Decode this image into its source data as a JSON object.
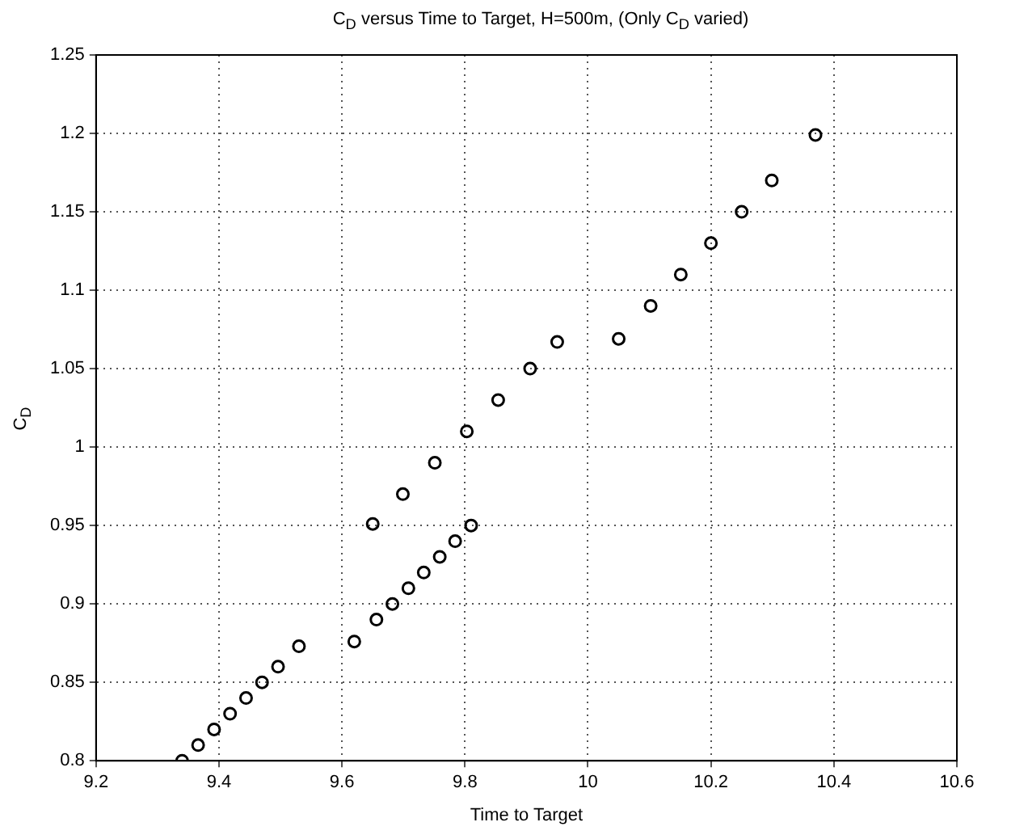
{
  "chart_data": {
    "type": "scatter",
    "title": "C$_{D}$ versus Time to Target, H=500m, (Only C$_{D}$ varied)",
    "xlabel": "Time to Target",
    "ylabel": "C$_{D}$",
    "series": [
      {
        "color": "#000000",
        "x": [
          9.34,
          9.366,
          9.392,
          9.418,
          9.444,
          9.47,
          9.496,
          9.53,
          9.62,
          9.656,
          9.682,
          9.708,
          9.733,
          9.759,
          9.784,
          9.81,
          9.65,
          9.699,
          9.751,
          9.803,
          9.854,
          9.906,
          9.95,
          10.05,
          10.102,
          10.151,
          10.2,
          10.25,
          10.299,
          10.37
        ],
        "values": [
          0.8,
          0.81,
          0.82,
          0.83,
          0.84,
          0.85,
          0.86,
          0.873,
          0.876,
          0.89,
          0.9,
          0.91,
          0.92,
          0.93,
          0.94,
          0.95,
          0.951,
          0.97,
          0.99,
          1.01,
          1.03,
          1.05,
          1.067,
          1.069,
          1.09,
          1.11,
          1.13,
          1.15,
          1.17,
          1.199
        ]
      }
    ],
    "xlim": [
      9.2,
      10.6
    ],
    "xticks": [
      9.2,
      9.4,
      9.6,
      9.8,
      10,
      10.2,
      10.4,
      10.6
    ],
    "ylim": [
      0.8,
      1.25
    ],
    "yticks": [
      0.8,
      0.85,
      0.9,
      0.95,
      1,
      1.05,
      1.1,
      1.15,
      1.2,
      1.25
    ],
    "grid": true,
    "marker": "circle",
    "legend": false
  }
}
